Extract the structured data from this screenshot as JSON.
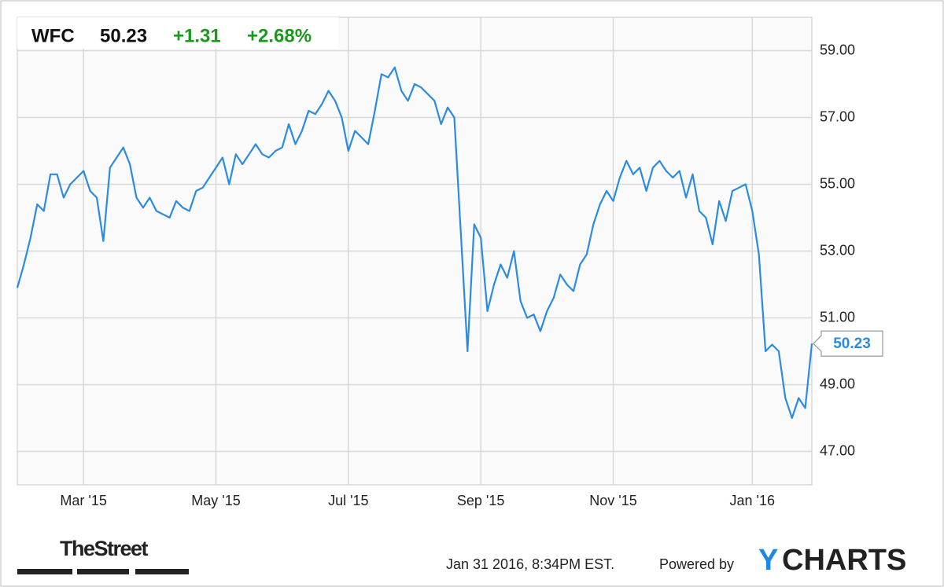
{
  "chart_data": {
    "type": "line",
    "header": {
      "ticker": "WFC",
      "price": "50.23",
      "change": "+1.31",
      "change_pct": "+2.68%"
    },
    "categories": [
      null,
      null,
      null,
      null,
      null,
      null,
      null,
      null,
      null,
      null,
      "Mar '15",
      null,
      null,
      null,
      null,
      null,
      null,
      null,
      null,
      null,
      null,
      null,
      null,
      null,
      null,
      null,
      null,
      null,
      null,
      null,
      "May '15",
      null,
      null,
      null,
      null,
      null,
      null,
      null,
      null,
      null,
      null,
      null,
      null,
      null,
      null,
      null,
      null,
      null,
      null,
      null,
      "Jul '15",
      null,
      null,
      null,
      null,
      null,
      null,
      null,
      null,
      null,
      null,
      null,
      null,
      null,
      null,
      null,
      null,
      null,
      null,
      null,
      "Sep '15",
      null,
      null,
      null,
      null,
      null,
      null,
      null,
      null,
      null,
      null,
      null,
      null,
      null,
      null,
      null,
      null,
      null,
      null,
      null,
      "Nov '15",
      null,
      null,
      null,
      null,
      null,
      null,
      null,
      null,
      null,
      null,
      null,
      null,
      null,
      null,
      null,
      null,
      null,
      null,
      null,
      null,
      "Jan '16",
      null,
      null,
      null,
      null,
      null,
      null,
      null,
      null,
      null
    ],
    "series": [
      {
        "name": "WFC",
        "color": "#2b8be0",
        "values": [
          51.9,
          52.6,
          53.4,
          54.4,
          54.2,
          55.3,
          55.3,
          54.6,
          55.0,
          55.2,
          55.4,
          54.8,
          54.6,
          53.3,
          55.5,
          55.8,
          56.1,
          55.6,
          54.6,
          54.3,
          54.6,
          54.2,
          54.1,
          54.0,
          54.5,
          54.3,
          54.2,
          54.8,
          54.9,
          55.2,
          55.5,
          55.8,
          55.0,
          55.9,
          55.6,
          55.9,
          56.2,
          55.9,
          55.8,
          56.0,
          56.1,
          56.8,
          56.2,
          56.6,
          57.2,
          57.1,
          57.4,
          57.8,
          57.5,
          57.0,
          56.0,
          56.6,
          56.4,
          56.2,
          57.2,
          58.3,
          58.2,
          58.5,
          57.8,
          57.5,
          58.0,
          57.9,
          57.7,
          57.5,
          56.8,
          57.3,
          57.0,
          53.5,
          50.0,
          53.8,
          53.4,
          51.2,
          52.0,
          52.6,
          52.2,
          53.0,
          51.5,
          51.0,
          51.1,
          50.6,
          51.2,
          51.6,
          52.3,
          52.0,
          51.8,
          52.6,
          52.9,
          53.8,
          54.4,
          54.8,
          54.5,
          55.2,
          55.7,
          55.3,
          55.5,
          54.8,
          55.5,
          55.7,
          55.4,
          55.2,
          55.4,
          54.6,
          55.3,
          54.2,
          54.0,
          53.2,
          54.5,
          53.9,
          54.8,
          54.9,
          55.0,
          54.2,
          52.9,
          50.0,
          50.2,
          50.0,
          48.6,
          48.0,
          48.6,
          48.3,
          50.23
        ]
      }
    ],
    "ylim": [
      46,
      60
    ],
    "yticks": [
      {
        "value": 47,
        "label": "47.00"
      },
      {
        "value": 49,
        "label": "49.00"
      },
      {
        "value": 51,
        "label": "51.00"
      },
      {
        "value": 53,
        "label": "53.00"
      },
      {
        "value": 55,
        "label": "55.00"
      },
      {
        "value": 57,
        "label": "57.00"
      },
      {
        "value": 59,
        "label": "59.00"
      }
    ],
    "grid": true,
    "footer": {
      "source": "TheStreet",
      "timestamp": "Jan 31 2016, 8:34PM EST.",
      "powered": "Powered by",
      "brand_parts": [
        "Y",
        "CHARTS"
      ]
    }
  }
}
